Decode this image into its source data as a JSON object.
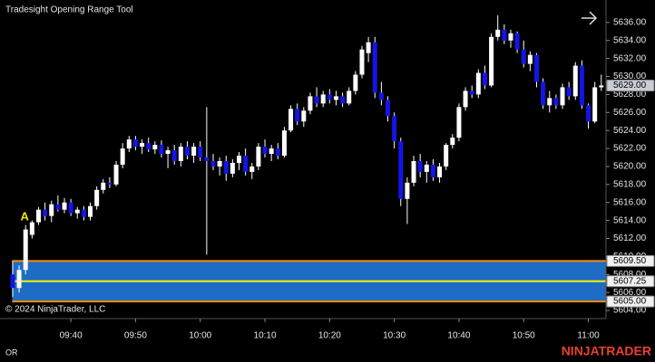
{
  "chart_data": {
    "type": "candlestick",
    "title": "Tradesight Opening Range Tool",
    "copyright": "© 2024 NinjaTrader, LLC",
    "footer_tab": "OR",
    "brand": "NINJATRADER",
    "annotation": "A",
    "up_color": "#ffffff",
    "down_color": "#1414e6",
    "wick_color": "#ffffff",
    "range_fill": "#1f6cc4",
    "range_line_color": "#ff8a00",
    "range_mid_color": "#f2f200",
    "ylim": [
      5603.1,
      5638.5
    ],
    "yticks": [
      {
        "value": 5604,
        "label": "5604.00"
      },
      {
        "value": 5606,
        "label": "5606.00"
      },
      {
        "value": 5608,
        "label": "5608.00"
      },
      {
        "value": 5610,
        "label": "5610.00"
      },
      {
        "value": 5612,
        "label": "5612.00"
      },
      {
        "value": 5614,
        "label": "5614.00"
      },
      {
        "value": 5616,
        "label": "5616.00"
      },
      {
        "value": 5618,
        "label": "5618.00"
      },
      {
        "value": 5620,
        "label": "5620.00"
      },
      {
        "value": 5622,
        "label": "5622.00"
      },
      {
        "value": 5624,
        "label": "5624.00"
      },
      {
        "value": 5626,
        "label": "5626.00"
      },
      {
        "value": 5628,
        "label": "5628.00"
      },
      {
        "value": 5630,
        "label": "5630.00"
      },
      {
        "value": 5632,
        "label": "5632.00"
      },
      {
        "value": 5634,
        "label": "5634.00"
      },
      {
        "value": 5636,
        "label": "5636.00"
      }
    ],
    "opening_range": {
      "high": {
        "value": 5609.5,
        "label": "5609.50"
      },
      "mid": {
        "value": 5607.25,
        "label": "5607.25"
      },
      "low": {
        "value": 5605,
        "label": "5605.00"
      }
    },
    "last_price": {
      "value": 5629,
      "label": "5629.00"
    },
    "categories": [
      null,
      null,
      null,
      null,
      null,
      null,
      null,
      null,
      null,
      "09:40",
      null,
      null,
      null,
      null,
      null,
      null,
      null,
      null,
      null,
      "09:50",
      null,
      null,
      null,
      null,
      null,
      null,
      null,
      null,
      null,
      "10:00",
      null,
      null,
      null,
      null,
      null,
      null,
      null,
      null,
      null,
      "10:10",
      null,
      null,
      null,
      null,
      null,
      null,
      null,
      null,
      null,
      "10:20",
      null,
      null,
      null,
      null,
      null,
      null,
      null,
      null,
      null,
      "10:30",
      null,
      null,
      null,
      null,
      null,
      null,
      null,
      null,
      null,
      "10:40",
      null,
      null,
      null,
      null,
      null,
      null,
      null,
      null,
      null,
      "10:50",
      null,
      null,
      null,
      null,
      null,
      null,
      null,
      null,
      null,
      "11:00",
      null,
      null
    ],
    "ohlc": [
      [
        5608,
        5609.5,
        5605.5,
        5606.5
      ],
      [
        5606.5,
        5609,
        5606,
        5608.5
      ],
      [
        5608.5,
        5613.5,
        5608,
        5613
      ],
      [
        5612.4,
        5614,
        5612,
        5613.8
      ],
      [
        5613.8,
        5615.5,
        5613.5,
        5615.2
      ],
      [
        5615.2,
        5616,
        5614,
        5614.5
      ],
      [
        5614.5,
        5616.2,
        5613.8,
        5615.8
      ],
      [
        5615.8,
        5616.8,
        5615,
        5615.2
      ],
      [
        5615.2,
        5616.5,
        5614.8,
        5616
      ],
      [
        5616,
        5616.4,
        5614.5,
        5614.8
      ],
      [
        5614.8,
        5615.5,
        5614.2,
        5615.2
      ],
      [
        5615.2,
        5615.6,
        5614,
        5614.4
      ],
      [
        5614.4,
        5616,
        5614,
        5615.6
      ],
      [
        5615.6,
        5617.8,
        5615.2,
        5617.4
      ],
      [
        5617.4,
        5618.6,
        5617,
        5618.2
      ],
      [
        5618.2,
        5618.8,
        5617.6,
        5618
      ],
      [
        5618,
        5620.6,
        5617.8,
        5620.2
      ],
      [
        5620.2,
        5622.6,
        5619.8,
        5622
      ],
      [
        5622,
        5623.4,
        5621.6,
        5623
      ],
      [
        5623,
        5623.4,
        5621.8,
        5622.2
      ],
      [
        5622.2,
        5623,
        5621.4,
        5622.6
      ],
      [
        5622.6,
        5623.2,
        5621.6,
        5621.9
      ],
      [
        5621.9,
        5622.8,
        5621.4,
        5622.4
      ],
      [
        5622.4,
        5622.9,
        5621,
        5621.4
      ],
      [
        5621.4,
        5622.2,
        5619.8,
        5621.8
      ],
      [
        5621.8,
        5622.4,
        5620.2,
        5620.6
      ],
      [
        5620.6,
        5622.6,
        5620,
        5622.2
      ],
      [
        5622.2,
        5622.8,
        5620.8,
        5621.2
      ],
      [
        5621.2,
        5622.6,
        5620.4,
        5622.2
      ],
      [
        5622.2,
        5622.8,
        5620.6,
        5621
      ],
      [
        5621,
        5626.6,
        5610.2,
        5620.6
      ],
      [
        5620.6,
        5621.4,
        5619.6,
        5620
      ],
      [
        5620,
        5621,
        5619,
        5620.6
      ],
      [
        5620.6,
        5621.2,
        5618.4,
        5619.2
      ],
      [
        5619.2,
        5620.8,
        5618.8,
        5620.4
      ],
      [
        5620.4,
        5621.6,
        5619.6,
        5621.2
      ],
      [
        5621.2,
        5622,
        5619,
        5619.4
      ],
      [
        5619.4,
        5620.4,
        5618.6,
        5620
      ],
      [
        5620,
        5622.6,
        5619.6,
        5622.2
      ],
      [
        5622.2,
        5623,
        5621,
        5621.4
      ],
      [
        5621.4,
        5622.4,
        5620.6,
        5622
      ],
      [
        5622,
        5622.6,
        5620.8,
        5621.2
      ],
      [
        5621.2,
        5624.4,
        5621,
        5624
      ],
      [
        5624,
        5626.8,
        5623.8,
        5626.4
      ],
      [
        5626.4,
        5627,
        5624.6,
        5625
      ],
      [
        5625,
        5626.6,
        5624.4,
        5626.2
      ],
      [
        5626.2,
        5628.2,
        5625.8,
        5627.8
      ],
      [
        5627.8,
        5628.8,
        5626.6,
        5627
      ],
      [
        5627,
        5628.4,
        5626.6,
        5628
      ],
      [
        5628,
        5628.6,
        5627,
        5627.4
      ],
      [
        5627.4,
        5628.4,
        5626.8,
        5627.8
      ],
      [
        5627.8,
        5628.2,
        5626.6,
        5627
      ],
      [
        5627,
        5628.8,
        5626.8,
        5628.4
      ],
      [
        5628.4,
        5630.6,
        5628,
        5630.2
      ],
      [
        5630.2,
        5633.4,
        5629.8,
        5633
      ],
      [
        5632.6,
        5634.4,
        5631.6,
        5633.8
      ],
      [
        5633.8,
        5634.4,
        5627.6,
        5628.2
      ],
      [
        5628.2,
        5629.4,
        5626.8,
        5627.4
      ],
      [
        5627.4,
        5627.8,
        5625,
        5625.6
      ],
      [
        5625.6,
        5626,
        5622,
        5622.8
      ],
      [
        5622.8,
        5623.2,
        5615.6,
        5616.4
      ],
      [
        5616.4,
        5618.8,
        5613.6,
        5618.2
      ],
      [
        5618.2,
        5621.2,
        5617.8,
        5620.6
      ],
      [
        5620.6,
        5621.4,
        5618.8,
        5619.4
      ],
      [
        5619.4,
        5620.6,
        5618.2,
        5620.2
      ],
      [
        5620.2,
        5620.8,
        5618.4,
        5618.8
      ],
      [
        5618.8,
        5620.4,
        5618.2,
        5620
      ],
      [
        5620,
        5622.6,
        5619.6,
        5622.4
      ],
      [
        5622.4,
        5623.6,
        5622,
        5623.2
      ],
      [
        5623.2,
        5627,
        5622.8,
        5626.6
      ],
      [
        5626.6,
        5628.8,
        5626.2,
        5628.4
      ],
      [
        5628.4,
        5629,
        5627.6,
        5628
      ],
      [
        5628,
        5630.8,
        5627.6,
        5630.4
      ],
      [
        5630.4,
        5631.2,
        5628.6,
        5629
      ],
      [
        5629,
        5634.8,
        5628.8,
        5634.4
      ],
      [
        5634.4,
        5636.8,
        5634,
        5635.2
      ],
      [
        5635.2,
        5635.8,
        5633.6,
        5634
      ],
      [
        5634,
        5635.2,
        5633.2,
        5634.8
      ],
      [
        5634.8,
        5635,
        5632.6,
        5633
      ],
      [
        5633,
        5634,
        5631,
        5631.4
      ],
      [
        5631.4,
        5632.8,
        5630.6,
        5632.4
      ],
      [
        5632.4,
        5632.6,
        5628.8,
        5629.4
      ],
      [
        5629.4,
        5629.8,
        5626.4,
        5626.8
      ],
      [
        5626.8,
        5628.4,
        5626,
        5627.6
      ],
      [
        5627.6,
        5628,
        5626.4,
        5626.8
      ],
      [
        5626.8,
        5629.2,
        5626.4,
        5628.8
      ],
      [
        5628.8,
        5629.4,
        5627.4,
        5627.8
      ],
      [
        5627.8,
        5631.6,
        5627.4,
        5631.2
      ],
      [
        5631.2,
        5631.8,
        5626.4,
        5626.8
      ],
      [
        5626.8,
        5627,
        5624.2,
        5625
      ],
      [
        5625,
        5629.4,
        5624.8,
        5628.8
      ],
      [
        5628.8,
        5630.2,
        5628.4,
        5629
      ]
    ]
  }
}
